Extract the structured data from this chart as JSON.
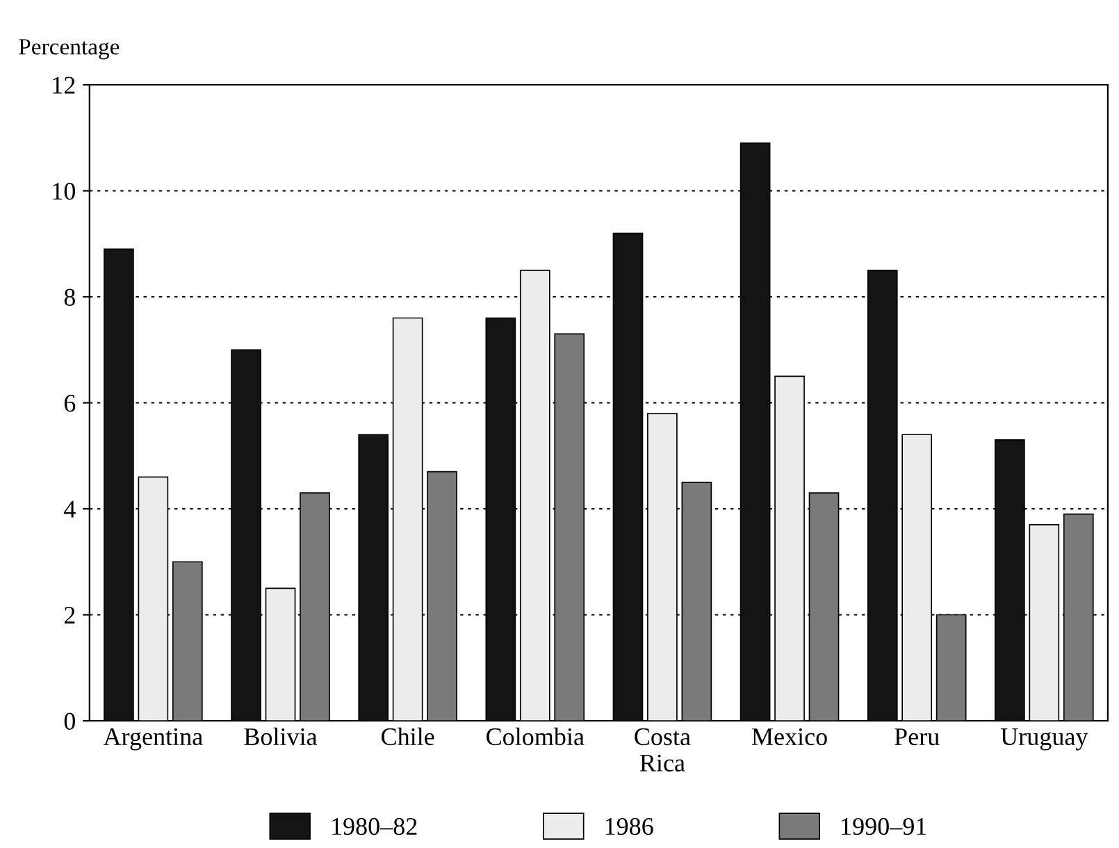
{
  "chart_data": {
    "type": "bar",
    "ylabel": "Percentage",
    "categories": [
      "Argentina",
      "Bolivia",
      "Chile",
      "Colombia",
      "Costa\nRica",
      "Mexico",
      "Peru",
      "Uruguay"
    ],
    "series": [
      {
        "name": "1980–82",
        "color": "#141414",
        "values": [
          8.9,
          7.0,
          5.4,
          7.6,
          9.2,
          10.9,
          8.5,
          5.3
        ]
      },
      {
        "name": "1986",
        "color": "#ececec",
        "values": [
          4.6,
          2.5,
          7.6,
          8.5,
          5.8,
          6.5,
          5.4,
          3.7
        ]
      },
      {
        "name": "1990–91",
        "color": "#7a7a7a",
        "values": [
          3.0,
          4.3,
          4.7,
          7.3,
          4.5,
          4.3,
          2.0,
          3.9
        ]
      }
    ],
    "ylim": [
      0,
      12
    ],
    "yticks": [
      0,
      2,
      4,
      6,
      8,
      10,
      12
    ],
    "grid": "y",
    "legend": "bottom"
  }
}
